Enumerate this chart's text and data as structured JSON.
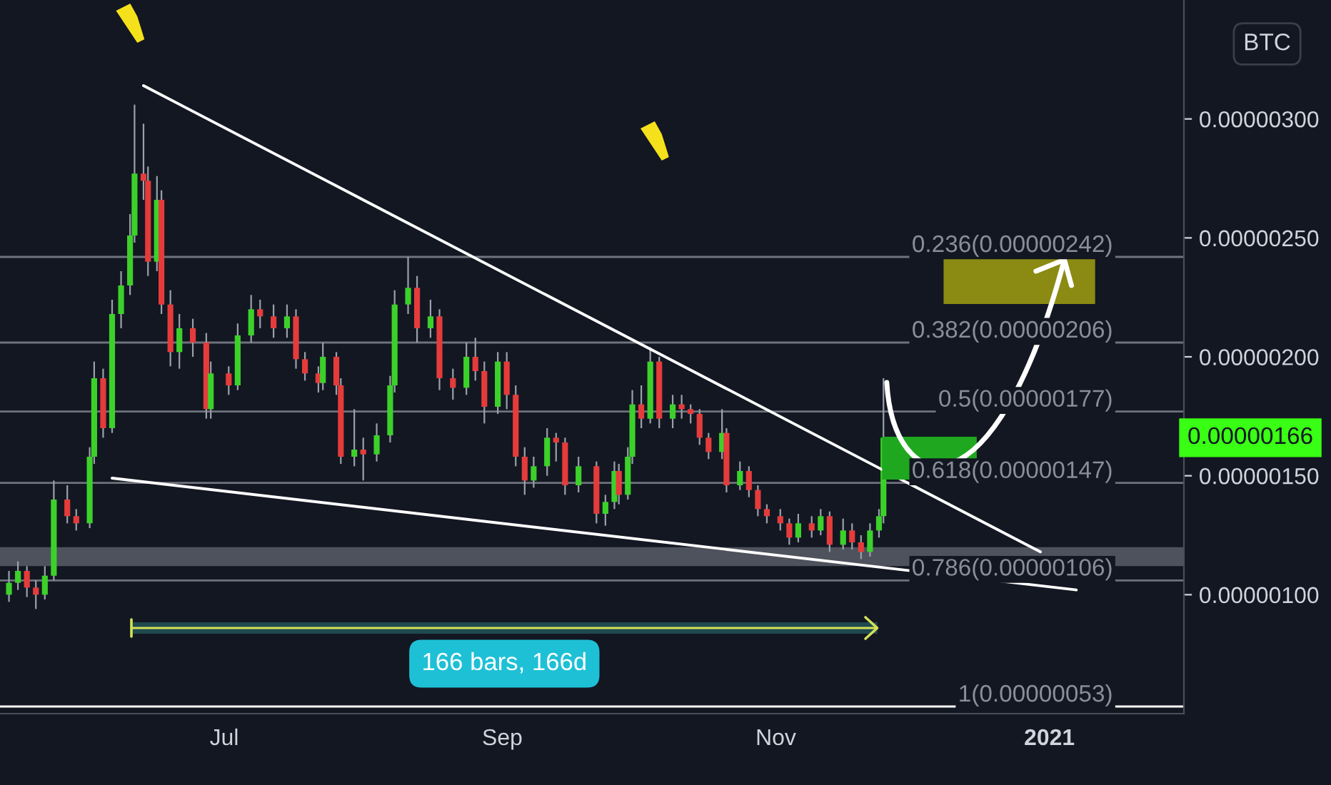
{
  "chart_data": {
    "type": "candlestick",
    "x": [
      "2020-05-14",
      "2020-05-16",
      "2020-05-18",
      "2020-05-20",
      "2020-05-22",
      "2020-05-24",
      "2020-05-27",
      "2020-05-29",
      "2020-06-01",
      "2020-06-02",
      "2020-06-04",
      "2020-06-06",
      "2020-06-08",
      "2020-06-10",
      "2020-06-11",
      "2020-06-13",
      "2020-06-14",
      "2020-06-16",
      "2020-06-17",
      "2020-06-19",
      "2020-06-21",
      "2020-06-24",
      "2020-06-27",
      "2020-06-28",
      "2020-07-02",
      "2020-07-04",
      "2020-07-07",
      "2020-07-09",
      "2020-07-12",
      "2020-07-15",
      "2020-07-17",
      "2020-07-19",
      "2020-07-22",
      "2020-07-23",
      "2020-07-26",
      "2020-07-27",
      "2020-07-30",
      "2020-08-01",
      "2020-08-04",
      "2020-08-07",
      "2020-08-08",
      "2020-08-11",
      "2020-08-13",
      "2020-08-16",
      "2020-08-18",
      "2020-08-21",
      "2020-08-24",
      "2020-08-26",
      "2020-08-28",
      "2020-08-31",
      "2020-09-02",
      "2020-09-04",
      "2020-09-06",
      "2020-09-08",
      "2020-09-11",
      "2020-09-13",
      "2020-09-15",
      "2020-09-18",
      "2020-09-22",
      "2020-09-24",
      "2020-09-26",
      "2020-09-27",
      "2020-09-29",
      "2020-09-30",
      "2020-10-02",
      "2020-10-04",
      "2020-10-06",
      "2020-10-09",
      "2020-10-11",
      "2020-10-13",
      "2020-10-15",
      "2020-10-17",
      "2020-10-20",
      "2020-10-21",
      "2020-10-24",
      "2020-10-26",
      "2020-10-28",
      "2020-10-30",
      "2020-11-02",
      "2020-11-04",
      "2020-11-06",
      "2020-11-09",
      "2020-11-11",
      "2020-11-13",
      "2020-11-16",
      "2020-11-18",
      "2020-11-20",
      "2020-11-22",
      "2020-11-24",
      "2020-11-25"
    ],
    "ohlc": [
      [
        1e-06,
        1.1e-06,
        9.7e-07,
        1.05e-06
      ],
      [
        1.05e-06,
        1.14e-06,
        1.02e-06,
        1.1e-06
      ],
      [
        1.1e-06,
        1.12e-06,
        9.9e-07,
        1.03e-06
      ],
      [
        1.03e-06,
        1.06e-06,
        9.4e-07,
        1e-06
      ],
      [
        1e-06,
        1.12e-06,
        9.8e-07,
        1.08e-06
      ],
      [
        1.08e-06,
        1.48e-06,
        1.06e-06,
        1.4e-06
      ],
      [
        1.4e-06,
        1.46e-06,
        1.3e-06,
        1.33e-06
      ],
      [
        1.33e-06,
        1.36e-06,
        1.27e-06,
        1.3e-06
      ],
      [
        1.3e-06,
        1.62e-06,
        1.28e-06,
        1.58e-06
      ],
      [
        1.58e-06,
        1.98e-06,
        1.55e-06,
        1.91e-06
      ],
      [
        1.91e-06,
        1.95e-06,
        1.66e-06,
        1.7e-06
      ],
      [
        1.7e-06,
        2.24e-06,
        1.68e-06,
        2.18e-06
      ],
      [
        2.18e-06,
        2.36e-06,
        2.12e-06,
        2.3e-06
      ],
      [
        2.3e-06,
        2.6e-06,
        2.26e-06,
        2.51e-06
      ],
      [
        2.51e-06,
        3.06e-06,
        2.48e-06,
        2.77e-06
      ],
      [
        2.77e-06,
        2.98e-06,
        2.66e-06,
        2.74e-06
      ],
      [
        2.74e-06,
        2.8e-06,
        2.34e-06,
        2.4e-06
      ],
      [
        2.4e-06,
        2.76e-06,
        2.36e-06,
        2.66e-06
      ],
      [
        2.66e-06,
        2.7e-06,
        2.18e-06,
        2.22e-06
      ],
      [
        2.22e-06,
        2.28e-06,
        1.96e-06,
        2.02e-06
      ],
      [
        2.02e-06,
        2.18e-06,
        1.95e-06,
        2.12e-06
      ],
      [
        2.12e-06,
        2.16e-06,
        2e-06,
        2.06e-06
      ],
      [
        2.06e-06,
        2.1e-06,
        1.74e-06,
        1.78e-06
      ],
      [
        1.78e-06,
        1.98e-06,
        1.74e-06,
        1.93e-06
      ],
      [
        1.93e-06,
        1.96e-06,
        1.84e-06,
        1.88e-06
      ],
      [
        1.88e-06,
        2.14e-06,
        1.86e-06,
        2.09e-06
      ],
      [
        2.09e-06,
        2.26e-06,
        2.06e-06,
        2.2e-06
      ],
      [
        2.2e-06,
        2.24e-06,
        2.12e-06,
        2.17e-06
      ],
      [
        2.17e-06,
        2.22e-06,
        2.08e-06,
        2.12e-06
      ],
      [
        2.12e-06,
        2.22e-06,
        2.08e-06,
        2.17e-06
      ],
      [
        2.17e-06,
        2.2e-06,
        1.95e-06,
        1.99e-06
      ],
      [
        1.99e-06,
        2.02e-06,
        1.9e-06,
        1.93e-06
      ],
      [
        1.93e-06,
        1.96e-06,
        1.85e-06,
        1.89e-06
      ],
      [
        1.89e-06,
        2.06e-06,
        1.86e-06,
        2e-06
      ],
      [
        2e-06,
        2.02e-06,
        1.84e-06,
        1.88e-06
      ],
      [
        1.88e-06,
        1.91e-06,
        1.55e-06,
        1.58e-06
      ],
      [
        1.58e-06,
        1.78e-06,
        1.54e-06,
        1.61e-06
      ],
      [
        1.61e-06,
        1.66e-06,
        1.48e-06,
        1.59e-06
      ],
      [
        1.59e-06,
        1.72e-06,
        1.56e-06,
        1.67e-06
      ],
      [
        1.67e-06,
        1.92e-06,
        1.64e-06,
        1.88e-06
      ],
      [
        1.88e-06,
        2.28e-06,
        1.85e-06,
        2.22e-06
      ],
      [
        2.22e-06,
        2.42e-06,
        2.18e-06,
        2.29e-06
      ],
      [
        2.29e-06,
        2.34e-06,
        2.06e-06,
        2.12e-06
      ],
      [
        2.12e-06,
        2.24e-06,
        2.08e-06,
        2.17e-06
      ],
      [
        2.17e-06,
        2.2e-06,
        1.86e-06,
        1.91e-06
      ],
      [
        1.91e-06,
        1.95e-06,
        1.82e-06,
        1.87e-06
      ],
      [
        1.87e-06,
        2.06e-06,
        1.84e-06,
        2e-06
      ],
      [
        2e-06,
        2.08e-06,
        1.9e-06,
        1.94e-06
      ],
      [
        1.94e-06,
        1.98e-06,
        1.72e-06,
        1.79e-06
      ],
      [
        1.79e-06,
        2.02e-06,
        1.76e-06,
        1.98e-06
      ],
      [
        1.98e-06,
        2.02e-06,
        1.78e-06,
        1.84e-06
      ],
      [
        1.84e-06,
        1.88e-06,
        1.54e-06,
        1.58e-06
      ],
      [
        1.58e-06,
        1.62e-06,
        1.42e-06,
        1.48e-06
      ],
      [
        1.48e-06,
        1.58e-06,
        1.45e-06,
        1.54e-06
      ],
      [
        1.54e-06,
        1.7e-06,
        1.5e-06,
        1.66e-06
      ],
      [
        1.66e-06,
        1.68e-06,
        1.56e-06,
        1.64e-06
      ],
      [
        1.64e-06,
        1.66e-06,
        1.42e-06,
        1.46e-06
      ],
      [
        1.46e-06,
        1.58e-06,
        1.43e-06,
        1.54e-06
      ],
      [
        1.54e-06,
        1.56e-06,
        1.3e-06,
        1.34e-06
      ],
      [
        1.34e-06,
        1.42e-06,
        1.29e-06,
        1.39e-06
      ],
      [
        1.39e-06,
        1.56e-06,
        1.36e-06,
        1.52e-06
      ],
      [
        1.52e-06,
        1.55e-06,
        1.38e-06,
        1.42e-06
      ],
      [
        1.42e-06,
        1.62e-06,
        1.4e-06,
        1.58e-06
      ],
      [
        1.58e-06,
        1.86e-06,
        1.55e-06,
        1.8e-06
      ],
      [
        1.8e-06,
        1.88e-06,
        1.7e-06,
        1.74e-06
      ],
      [
        1.74e-06,
        2.04e-06,
        1.72e-06,
        1.98e-06
      ],
      [
        1.98e-06,
        2e-06,
        1.7e-06,
        1.74e-06
      ],
      [
        1.74e-06,
        1.84e-06,
        1.7e-06,
        1.8e-06
      ],
      [
        1.8e-06,
        1.84e-06,
        1.74e-06,
        1.78e-06
      ],
      [
        1.78e-06,
        1.8e-06,
        1.72e-06,
        1.76e-06
      ],
      [
        1.76e-06,
        1.78e-06,
        1.63e-06,
        1.66e-06
      ],
      [
        1.66e-06,
        1.68e-06,
        1.57e-06,
        1.6e-06
      ],
      [
        1.6e-06,
        1.78e-06,
        1.57e-06,
        1.68e-06
      ],
      [
        1.68e-06,
        1.7e-06,
        1.43e-06,
        1.46e-06
      ],
      [
        1.46e-06,
        1.56e-06,
        1.44e-06,
        1.52e-06
      ],
      [
        1.52e-06,
        1.54e-06,
        1.41e-06,
        1.44e-06
      ],
      [
        1.44e-06,
        1.46e-06,
        1.33e-06,
        1.36e-06
      ],
      [
        1.36e-06,
        1.38e-06,
        1.3e-06,
        1.33e-06
      ],
      [
        1.33e-06,
        1.36e-06,
        1.27e-06,
        1.3e-06
      ],
      [
        1.3e-06,
        1.32e-06,
        1.21e-06,
        1.24e-06
      ],
      [
        1.24e-06,
        1.34e-06,
        1.22e-06,
        1.3e-06
      ],
      [
        1.3e-06,
        1.33e-06,
        1.24e-06,
        1.27e-06
      ],
      [
        1.27e-06,
        1.36e-06,
        1.25e-06,
        1.33e-06
      ],
      [
        1.33e-06,
        1.35e-06,
        1.18e-06,
        1.21e-06
      ],
      [
        1.21e-06,
        1.32e-06,
        1.19e-06,
        1.27e-06
      ],
      [
        1.27e-06,
        1.3e-06,
        1.19e-06,
        1.22e-06
      ],
      [
        1.22e-06,
        1.25e-06,
        1.15e-06,
        1.18e-06
      ],
      [
        1.18e-06,
        1.3e-06,
        1.16e-06,
        1.27e-06
      ],
      [
        1.27e-06,
        1.36e-06,
        1.24e-06,
        1.33e-06
      ],
      [
        1.33e-06,
        1.91e-06,
        1.3e-06,
        1.66e-06
      ]
    ],
    "colors": [
      "#3cd12a",
      "#3cd12a",
      "#e53b3b",
      "#e53b3b",
      "#3cd12a",
      "#3cd12a",
      "#e53b3b",
      "#e53b3b",
      "#3cd12a",
      "#3cd12a",
      "#e53b3b",
      "#3cd12a",
      "#3cd12a",
      "#3cd12a",
      "#3cd12a",
      "#e53b3b",
      "#e53b3b",
      "#3cd12a",
      "#e53b3b",
      "#e53b3b",
      "#3cd12a",
      "#e53b3b",
      "#e53b3b",
      "#3cd12a",
      "#e53b3b",
      "#3cd12a",
      "#3cd12a",
      "#e53b3b",
      "#e53b3b",
      "#3cd12a",
      "#e53b3b",
      "#e53b3b",
      "#e53b3b",
      "#3cd12a",
      "#e53b3b",
      "#e53b3b",
      "#3cd12a",
      "#e53b3b",
      "#3cd12a",
      "#3cd12a",
      "#3cd12a",
      "#3cd12a",
      "#e53b3b",
      "#3cd12a",
      "#e53b3b",
      "#e53b3b",
      "#3cd12a",
      "#e53b3b",
      "#e53b3b",
      "#3cd12a",
      "#e53b3b",
      "#e53b3b",
      "#e53b3b",
      "#3cd12a",
      "#3cd12a",
      "#e53b3b",
      "#e53b3b",
      "#3cd12a",
      "#e53b3b",
      "#3cd12a",
      "#3cd12a",
      "#e53b3b",
      "#3cd12a",
      "#3cd12a",
      "#e53b3b",
      "#3cd12a",
      "#e53b3b",
      "#3cd12a",
      "#e53b3b",
      "#e53b3b",
      "#e53b3b",
      "#e53b3b",
      "#3cd12a",
      "#e53b3b",
      "#3cd12a",
      "#e53b3b",
      "#e53b3b",
      "#e53b3b",
      "#e53b3b",
      "#e53b3b",
      "#3cd12a",
      "#e53b3b",
      "#3cd12a",
      "#e53b3b",
      "#3cd12a",
      "#e53b3b",
      "#e53b3b",
      "#3cd12a",
      "#3cd12a",
      "#3cd12a"
    ],
    "series": [
      {
        "type": "line",
        "color": "#ffffff",
        "x": [
          "2020-06-13",
          "2020-12-30"
        ],
        "values": [
          3.14e-06,
          1.18e-06
        ]
      },
      {
        "type": "line",
        "color": "#ffffff",
        "x": [
          "2020-06-06",
          "2021-01-07"
        ],
        "values": [
          1.49e-06,
          1.02e-06
        ]
      }
    ],
    "ref_lines": [
      {
        "axis": "y",
        "value": 2.42e-06,
        "label": "0.236(0.00000242)",
        "color": "#6f737d"
      },
      {
        "axis": "y",
        "value": 2.06e-06,
        "label": "0.382(0.00000206)",
        "color": "#6f737d"
      },
      {
        "axis": "y",
        "value": 1.77e-06,
        "label": "0.5(0.00000177)",
        "color": "#6f737d"
      },
      {
        "axis": "y",
        "value": 1.47e-06,
        "label": "0.618(0.00000147)",
        "color": "#6f737d"
      },
      {
        "axis": "y",
        "value": 1.06e-06,
        "label": "0.786(0.00000106)",
        "color": "#6f737d"
      },
      {
        "axis": "y",
        "value": 5.3e-07,
        "label": "1(0.00000053)",
        "color": "#ffffff"
      }
    ],
    "bands": [
      {
        "axis": "y",
        "from": 1.12e-06,
        "to": 1.2e-06,
        "color": "#5d616b"
      }
    ],
    "annotations": [
      "BTC",
      "0.00000166",
      "166 bars, 166d"
    ],
    "xlim": [
      "2020-05-12",
      "2021-01-31"
    ],
    "xticks": [
      {
        "value": "2020-07-01",
        "label": "Jul"
      },
      {
        "value": "2020-09-01",
        "label": "Sep"
      },
      {
        "value": "2020-11-01",
        "label": "Nov"
      },
      {
        "value": "2021-01-01",
        "label": "2021"
      }
    ],
    "ylim": [
      5e-07,
      3.5e-06
    ],
    "yticks": [
      {
        "value": 1e-06,
        "label": "0.00000100"
      },
      {
        "value": 1.5e-06,
        "label": "0.00000150"
      },
      {
        "value": 2e-06,
        "label": "0.00000200"
      },
      {
        "value": 2.5e-06,
        "label": "0.00000250"
      },
      {
        "value": 3e-06,
        "label": "0.00000300"
      }
    ]
  }
}
